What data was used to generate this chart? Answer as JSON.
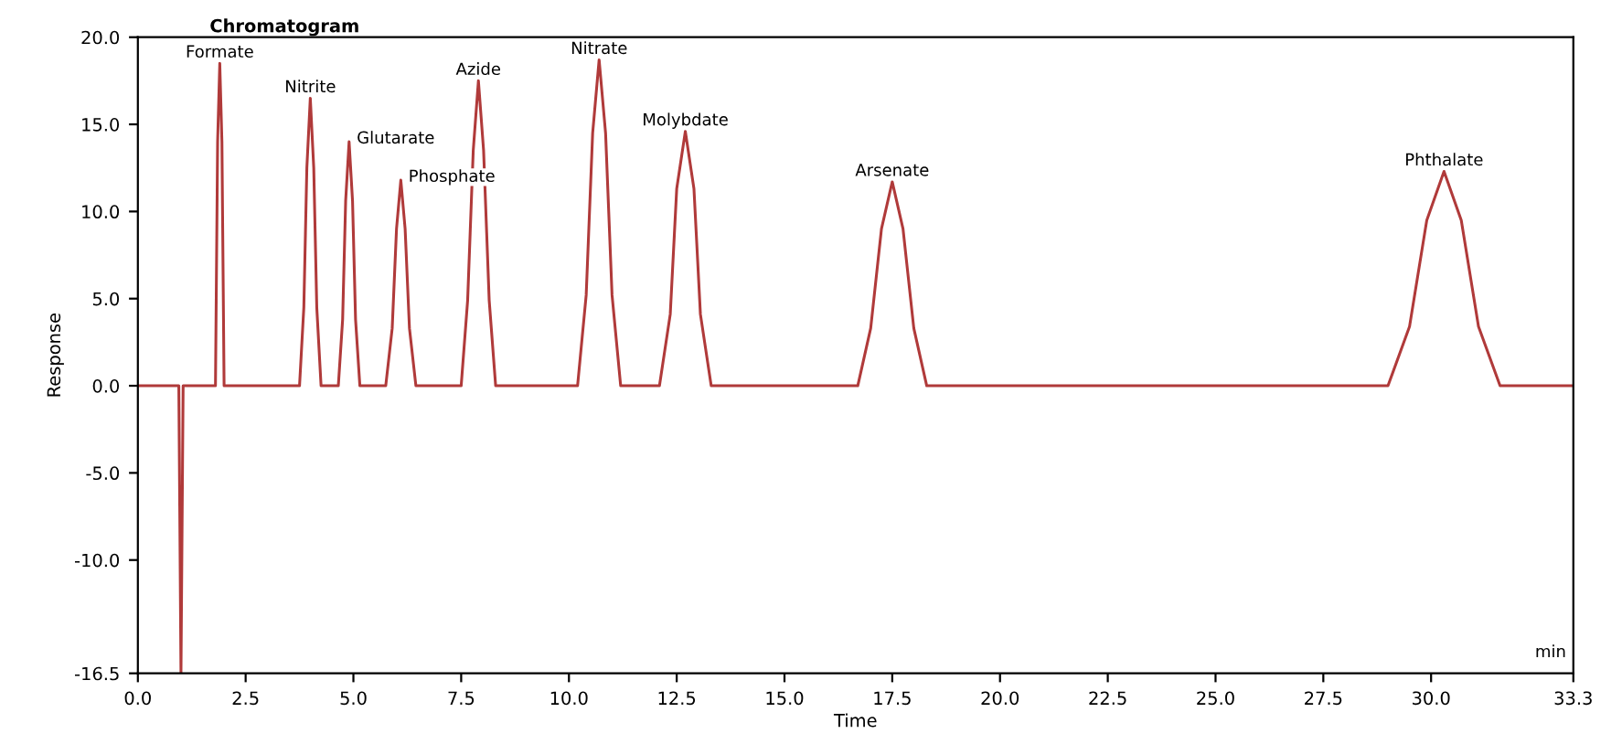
{
  "chart_data": {
    "type": "line",
    "title": "Chromatogram",
    "xlabel": "Time",
    "ylabel": "Response",
    "xlim": [
      0,
      33.3
    ],
    "ylim": [
      -16.5,
      20.0
    ],
    "xticks": [
      {
        "value": 0,
        "label": "0.0"
      },
      2.5,
      {
        "value": 5,
        "label": "5.0"
      },
      7.5,
      {
        "value": 10,
        "label": "10.0"
      },
      12.5,
      {
        "value": 15,
        "label": "15.0"
      },
      17.5,
      {
        "value": 20,
        "label": "20.0"
      },
      22.5,
      {
        "value": 25,
        "label": "25.0"
      },
      27.5,
      {
        "value": 30,
        "label": "30.0"
      },
      33.3
    ],
    "yticks": [
      {
        "value": -16.5,
        "label": "-16.5"
      },
      {
        "value": -10,
        "label": "-10.0"
      },
      {
        "value": -5,
        "label": "-5.0"
      },
      {
        "value": 0,
        "label": "0.0"
      },
      {
        "value": 5,
        "label": "5.0"
      },
      {
        "value": 10,
        "label": "10.0"
      },
      {
        "value": 15,
        "label": "15.0"
      },
      {
        "value": 20,
        "label": "20.0"
      }
    ],
    "grid": false,
    "marker": "none",
    "line_style": "solid",
    "series": [
      {
        "color": "#b03a3a",
        "x": [
          0,
          0.95,
          1.0,
          1.05,
          1.8,
          1.85,
          1.9,
          1.95,
          2.0,
          3.75,
          3.85,
          3.92,
          4.0,
          4.08,
          4.15,
          4.25,
          4.65,
          4.75,
          4.82,
          4.9,
          4.98,
          5.05,
          5.15,
          5.75,
          5.9,
          6.0,
          6.1,
          6.2,
          6.3,
          6.45,
          7.5,
          7.65,
          7.78,
          7.9,
          8.02,
          8.15,
          8.3,
          10.2,
          10.4,
          10.55,
          10.7,
          10.85,
          11.0,
          11.2,
          12.1,
          12.35,
          12.5,
          12.7,
          12.9,
          13.05,
          13.3,
          16.7,
          17.0,
          17.25,
          17.5,
          17.75,
          18.0,
          18.3,
          29.0,
          29.5,
          29.9,
          30.3,
          30.7,
          31.1,
          31.6,
          33.3
        ],
        "values": [
          0,
          0,
          -16.5,
          0,
          0,
          14,
          18.5,
          14,
          0,
          0,
          4.5,
          12.5,
          16.5,
          12.5,
          4.5,
          0,
          0,
          3.8,
          10.6,
          14,
          10.6,
          3.8,
          0,
          0,
          3.3,
          9.0,
          11.8,
          9.0,
          3.3,
          0,
          0,
          4.9,
          13.5,
          17.5,
          13.5,
          4.9,
          0,
          0,
          5.2,
          14.5,
          18.7,
          14.5,
          5.2,
          0,
          0,
          4.1,
          11.3,
          14.6,
          11.3,
          4.1,
          0,
          0,
          3.3,
          9.0,
          11.7,
          9.0,
          3.3,
          0,
          0,
          3.4,
          9.5,
          12.3,
          9.5,
          3.4,
          0,
          0
        ]
      }
    ],
    "annotations": [
      {
        "text": "Formate",
        "x": 1.9,
        "y": 18.5
      },
      {
        "text": "Nitrite",
        "x": 4.0,
        "y": 16.5
      },
      {
        "text": "Glutarate",
        "x": 4.9,
        "y": 14.0
      },
      {
        "text": "Phosphate",
        "x": 6.1,
        "y": 11.8
      },
      {
        "text": "Azide",
        "x": 7.9,
        "y": 17.5
      },
      {
        "text": "Nitrate",
        "x": 10.7,
        "y": 18.7
      },
      {
        "text": "Molybdate",
        "x": 12.7,
        "y": 14.6
      },
      {
        "text": "Arsenate",
        "x": 17.5,
        "y": 11.7
      },
      {
        "text": "Phthalate",
        "x": 30.3,
        "y": 12.3
      },
      "min"
    ]
  }
}
